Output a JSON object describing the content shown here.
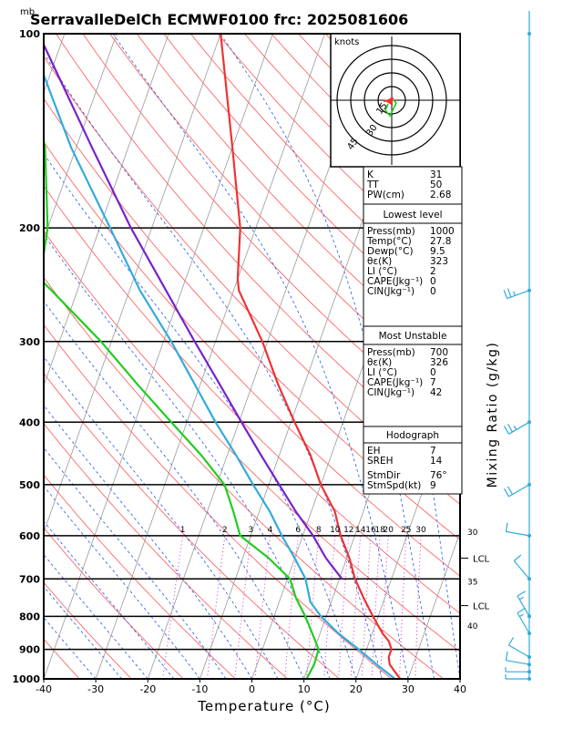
{
  "header": {
    "unit_label": "mb",
    "title": "SerravalleDelCh ECMWF0100 frc: 2025081606"
  },
  "chart_data": {
    "type": "line",
    "title": "SerravalleDelCh ECMWF0100 frc: 2025081606",
    "xlabel": "Temperature (°C)",
    "ylabel": "Mixing Ratio (g/kg)",
    "pressure_ticks": [
      100,
      200,
      300,
      400,
      500,
      600,
      700,
      800,
      900,
      1000
    ],
    "temperature_ticks": [
      -40,
      -30,
      -20,
      -10,
      0,
      10,
      20,
      30,
      40
    ],
    "xlim": [
      -40,
      40
    ],
    "ylim": [
      1000,
      100
    ],
    "y_scale": "log",
    "mixing_ratio_labels": [
      "1",
      "2",
      "3",
      "4",
      "6",
      "8",
      "10",
      "12",
      "14",
      "16",
      "18",
      "20",
      "25",
      "30"
    ],
    "mixing_ratio_values": [
      1,
      2,
      3,
      4,
      6,
      8,
      10,
      12,
      14,
      16,
      18,
      20,
      25,
      30
    ],
    "series": [
      {
        "key": "temperature",
        "color": "#ee3333",
        "p": [
          1000,
          975,
          950,
          925,
          900,
          875,
          850,
          800,
          750,
          700,
          650,
          600,
          550,
          500,
          450,
          400,
          350,
          300,
          250,
          240,
          200,
          150,
          100
        ],
        "t": [
          28.5,
          27,
          25.5,
          24.8,
          24.8,
          23.8,
          22,
          19,
          16,
          13,
          10.5,
          7.3,
          4.5,
          0,
          -4,
          -9.3,
          -15,
          -21,
          -29,
          -30,
          -33,
          -40,
          -50
        ]
      },
      {
        "key": "dewpoint",
        "color": "#22cc22",
        "p": [
          1000,
          950,
          900,
          850,
          800,
          750,
          700,
          650,
          600,
          550,
          500,
          450,
          400,
          350,
          300,
          250,
          240,
          200,
          150,
          100
        ],
        "t": [
          10.5,
          11,
          10.8,
          8.5,
          6,
          3,
          0.5,
          -5,
          -12,
          -15,
          -18.5,
          -25,
          -33,
          -42,
          -52,
          -65,
          -68,
          -70,
          -76,
          -88
        ]
      },
      {
        "key": "parcel_lowest",
        "color": "#33aadd",
        "p": [
          1000,
          950,
          900,
          850,
          800,
          760,
          700,
          650,
          600,
          550,
          500,
          450,
          400,
          350,
          300,
          250,
          200,
          150,
          100
        ],
        "t": [
          27.5,
          23,
          18.5,
          13.5,
          9,
          6,
          3.5,
          0,
          -4,
          -8,
          -13,
          -18.3,
          -24.5,
          -31,
          -38.5,
          -48,
          -58,
          -71,
          -87
        ]
      },
      {
        "key": "parcel_most_unstable",
        "color": "#7722cc",
        "p": [
          700,
          650,
          600,
          550,
          500,
          450,
          400,
          350,
          300,
          250,
          200,
          150,
          100
        ],
        "t": [
          10.5,
          6,
          2,
          -3,
          -8,
          -13.5,
          -19.5,
          -26.2,
          -34,
          -43,
          -54,
          -67,
          -85
        ]
      }
    ],
    "mixing_ratio_extra_labels": [
      {
        "text": "30",
        "p": 590
      },
      {
        "text": "35",
        "p": 705
      },
      {
        "text": "40",
        "p": 825
      }
    ],
    "lcl_labels": [
      {
        "text": "LCL",
        "p": 650
      },
      {
        "text": "LCL",
        "p": 770
      }
    ]
  },
  "hodograph": {
    "label": "knots",
    "ring_labels": [
      "15",
      "30",
      "45"
    ]
  },
  "indices": {
    "top_rows": [
      {
        "label": "K",
        "value": "31"
      },
      {
        "label": "TT",
        "value": "50"
      },
      {
        "label": "PW(cm)",
        "value": "2.68"
      }
    ],
    "lowest_level": {
      "heading": "Lowest level",
      "rows": [
        {
          "label": "Press(mb)",
          "value": "1000"
        },
        {
          "label": "Temp(°C)",
          "value": "27.8"
        },
        {
          "label": "Dewp(°C)",
          "value": "9.5"
        },
        {
          "label": "θε(K)",
          "value": "323"
        },
        {
          "label": "LI (°C)",
          "value": "2"
        },
        {
          "label": "CAPE(Jkg⁻¹)",
          "value": "0"
        },
        {
          "label": "CIN(Jkg⁻¹)",
          "value": "0"
        }
      ]
    },
    "most_unstable": {
      "heading": "Most Unstable",
      "rows": [
        {
          "label": "Press(mb)",
          "value": "700"
        },
        {
          "label": "θε(K)",
          "value": "326"
        },
        {
          "label": "LI (°C)",
          "value": "0"
        },
        {
          "label": "CAPE(Jkg⁻¹)",
          "value": "7"
        },
        {
          "label": "CIN(Jkg⁻¹)",
          "value": "42"
        }
      ]
    },
    "hodograph_section": {
      "heading": "Hodograph",
      "rows": [
        {
          "label": "EH",
          "value": "7"
        },
        {
          "label": "SREH",
          "value": "14"
        },
        {
          "label": "StmDir",
          "value": "76°"
        },
        {
          "label": "StmSpd(kt)",
          "value": "9"
        }
      ]
    }
  },
  "wind_profile": {
    "color": "#33aadd",
    "levels": [
      {
        "p": 100,
        "speed_kt": 0,
        "dir_deg": 0
      },
      {
        "p": 250,
        "speed_kt": 25,
        "dir_deg": 250
      },
      {
        "p": 400,
        "speed_kt": 25,
        "dir_deg": 240
      },
      {
        "p": 500,
        "speed_kt": 20,
        "dir_deg": 240
      },
      {
        "p": 600,
        "speed_kt": 10,
        "dir_deg": 280
      },
      {
        "p": 700,
        "speed_kt": 10,
        "dir_deg": 320
      },
      {
        "p": 800,
        "speed_kt": 15,
        "dir_deg": 330
      },
      {
        "p": 850,
        "speed_kt": 15,
        "dir_deg": 330
      },
      {
        "p": 925,
        "speed_kt": 10,
        "dir_deg": 300
      },
      {
        "p": 950,
        "speed_kt": 10,
        "dir_deg": 280
      },
      {
        "p": 975,
        "speed_kt": 5,
        "dir_deg": 270
      },
      {
        "p": 1000,
        "speed_kt": 5,
        "dir_deg": 270
      }
    ]
  }
}
